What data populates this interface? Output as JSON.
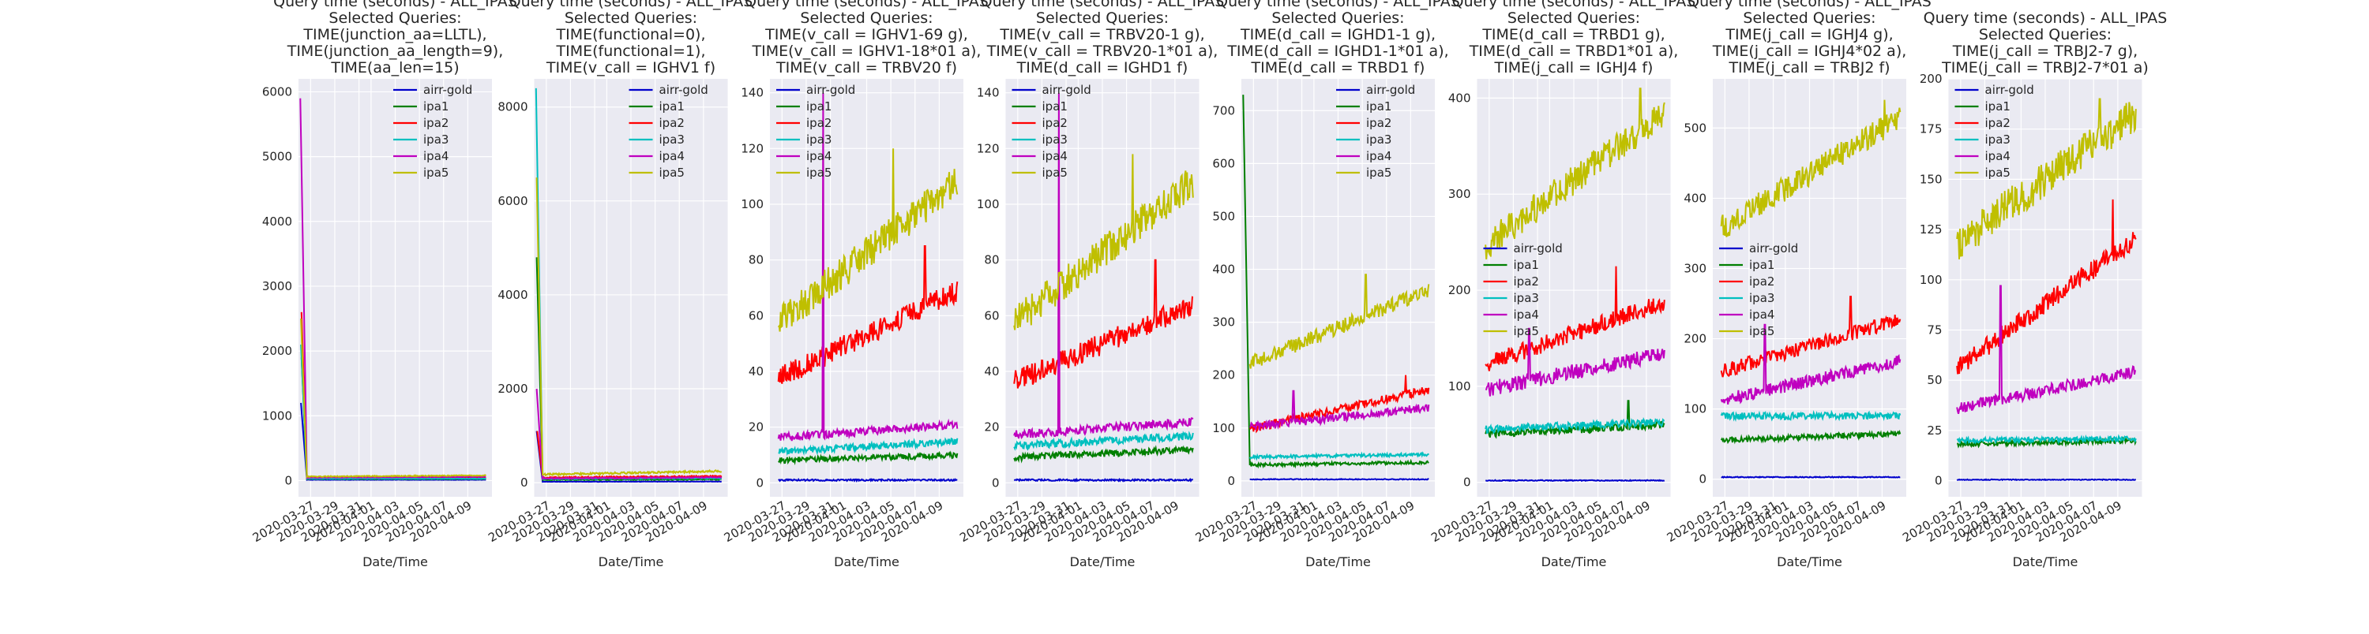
{
  "chart_data": [
    {
      "type": "line",
      "title": [
        "Query time (seconds) - ALL_IPAS",
        "Selected Queries:",
        "TIME(junction_aa=LLTL),",
        "TIME(junction_aa_length=9),",
        "TIME(aa_len=15)"
      ],
      "xlabel": "Date/Time",
      "ylabel": "",
      "x_range": [
        "2020-03-26",
        "2020-04-11"
      ],
      "x_ticks": [
        "2020-03-27",
        "2020-03-29",
        "2020-03-31",
        "2020-04-01",
        "2020-04-03",
        "2020-04-05",
        "2020-04-07",
        "2020-04-09"
      ],
      "ylim": [
        -250,
        6200
      ],
      "y_ticks": [
        0,
        1000,
        2000,
        3000,
        4000,
        5000,
        6000
      ],
      "legend_position": "upper-right",
      "series": [
        {
          "name": "airr-gold",
          "color": "#0000cc",
          "baseline": 12,
          "trend": 0,
          "noise": 2,
          "spike_day": 0.2,
          "spike_value": 1200
        },
        {
          "name": "ipa1",
          "color": "#007f00",
          "baseline": 25,
          "trend": 0,
          "noise": 4,
          "spike_day": 0.25,
          "spike_value": 1900
        },
        {
          "name": "ipa2",
          "color": "#ff0000",
          "baseline": 35,
          "trend": 10,
          "noise": 5,
          "spike_day": 0.25,
          "spike_value": 2600
        },
        {
          "name": "ipa3",
          "color": "#00bfbf",
          "baseline": 30,
          "trend": 0,
          "noise": 4,
          "spike_day": 0.2,
          "spike_value": 2100
        },
        {
          "name": "ipa4",
          "color": "#bf00bf",
          "baseline": 45,
          "trend": 15,
          "noise": 6,
          "spike_day": 0.15,
          "spike_value": 5900
        },
        {
          "name": "ipa5",
          "color": "#bfbf00",
          "baseline": 60,
          "trend": 20,
          "noise": 8,
          "spike_day": 0.2,
          "spike_value": 2500
        }
      ]
    },
    {
      "type": "line",
      "title": [
        "Query time (seconds) - ALL_IPAS",
        "Selected Queries:",
        "TIME(functional=0),",
        "TIME(functional=1),",
        "TIME(v_call = IGHV1 f)"
      ],
      "xlabel": "Date/Time",
      "ylabel": "",
      "x_range": [
        "2020-03-26",
        "2020-04-11"
      ],
      "x_ticks": [
        "2020-03-27",
        "2020-03-29",
        "2020-03-31",
        "2020-04-01",
        "2020-04-03",
        "2020-04-05",
        "2020-04-07",
        "2020-04-09"
      ],
      "ylim": [
        -300,
        8600
      ],
      "y_ticks": [
        0,
        2000,
        4000,
        6000,
        8000
      ],
      "legend_position": "upper-right",
      "series": [
        {
          "name": "airr-gold",
          "color": "#0000cc",
          "baseline": 20,
          "trend": 5,
          "noise": 4,
          "spike_day": 0.2,
          "spike_value": 1100
        },
        {
          "name": "ipa1",
          "color": "#007f00",
          "baseline": 60,
          "trend": 10,
          "noise": 10,
          "spike_day": 0.2,
          "spike_value": 4800
        },
        {
          "name": "ipa2",
          "color": "#ff0000",
          "baseline": 110,
          "trend": 30,
          "noise": 14,
          "spike_day": 0.25,
          "spike_value": 1100
        },
        {
          "name": "ipa3",
          "color": "#00bfbf",
          "baseline": 80,
          "trend": 20,
          "noise": 12,
          "spike_day": 0.15,
          "spike_value": 8400
        },
        {
          "name": "ipa4",
          "color": "#bf00bf",
          "baseline": 90,
          "trend": 25,
          "noise": 12,
          "spike_day": 0.2,
          "spike_value": 2000
        },
        {
          "name": "ipa5",
          "color": "#bfbf00",
          "baseline": 170,
          "trend": 80,
          "noise": 20,
          "spike_day": 0.2,
          "spike_value": 6500
        }
      ]
    },
    {
      "type": "line",
      "title": [
        "Query time (seconds) - ALL_IPAS",
        "Selected Queries:",
        "TIME(v_call = IGHV1-69 g),",
        "TIME(v_call = IGHV1-18*01 a),",
        "TIME(v_call = TRBV20 f)"
      ],
      "xlabel": "Date/Time",
      "ylabel": "",
      "x_range": [
        "2020-03-26",
        "2020-04-11"
      ],
      "x_ticks": [
        "2020-03-27",
        "2020-03-29",
        "2020-03-31",
        "2020-04-01",
        "2020-04-03",
        "2020-04-05",
        "2020-04-07",
        "2020-04-09"
      ],
      "ylim": [
        -5,
        145
      ],
      "y_ticks": [
        0,
        20,
        40,
        60,
        80,
        100,
        120,
        140
      ],
      "legend_position": "upper-left",
      "series": [
        {
          "name": "airr-gold",
          "color": "#0000cc",
          "baseline": 1,
          "trend": 0,
          "noise": 0.3
        },
        {
          "name": "ipa1",
          "color": "#007f00",
          "baseline": 8,
          "trend": 2,
          "noise": 1
        },
        {
          "name": "ipa2",
          "color": "#ff0000",
          "baseline": 36,
          "trend": 34,
          "noise": 4,
          "spike_day": 12.8,
          "spike_value": 85
        },
        {
          "name": "ipa3",
          "color": "#00bfbf",
          "baseline": 11,
          "trend": 4,
          "noise": 1.2
        },
        {
          "name": "ipa4",
          "color": "#bf00bf",
          "baseline": 16,
          "trend": 5,
          "noise": 1.5,
          "spike_day": 4.4,
          "spike_value": 140
        },
        {
          "name": "ipa5",
          "color": "#bfbf00",
          "baseline": 55,
          "trend": 55,
          "noise": 6,
          "spike_day": 10.2,
          "spike_value": 120
        }
      ]
    },
    {
      "type": "line",
      "title": [
        "Query time (seconds) - ALL_IPAS",
        "Selected Queries:",
        "TIME(v_call = TRBV20-1 g),",
        "TIME(v_call = TRBV20-1*01  a),",
        "TIME(d_call = IGHD1 f)"
      ],
      "xlabel": "Date/Time",
      "ylabel": "",
      "x_range": [
        "2020-03-26",
        "2020-04-11"
      ],
      "x_ticks": [
        "2020-03-27",
        "2020-03-29",
        "2020-03-31",
        "2020-04-01",
        "2020-04-03",
        "2020-04-05",
        "2020-04-07",
        "2020-04-09"
      ],
      "ylim": [
        -5,
        145
      ],
      "y_ticks": [
        0,
        20,
        40,
        60,
        80,
        100,
        120,
        140
      ],
      "legend_position": "upper-left",
      "series": [
        {
          "name": "airr-gold",
          "color": "#0000cc",
          "baseline": 1,
          "trend": 0,
          "noise": 0.3
        },
        {
          "name": "ipa1",
          "color": "#007f00",
          "baseline": 9,
          "trend": 3,
          "noise": 1.2
        },
        {
          "name": "ipa2",
          "color": "#ff0000",
          "baseline": 35,
          "trend": 30,
          "noise": 4,
          "spike_day": 12.4,
          "spike_value": 80
        },
        {
          "name": "ipa3",
          "color": "#00bfbf",
          "baseline": 13,
          "trend": 4,
          "noise": 1.4
        },
        {
          "name": "ipa4",
          "color": "#bf00bf",
          "baseline": 17,
          "trend": 5,
          "noise": 1.6,
          "spike_day": 4.4,
          "spike_value": 140
        },
        {
          "name": "ipa5",
          "color": "#bfbf00",
          "baseline": 55,
          "trend": 55,
          "noise": 6,
          "spike_day": 10.5,
          "spike_value": 118
        }
      ]
    },
    {
      "type": "line",
      "title": [
        "Query time (seconds) - ALL_IPAS",
        "Selected Queries:",
        "TIME(d_call = IGHD1-1 g),",
        "TIME(d_call = IGHD1-1*01 a),",
        "TIME(d_call = TRBD1 f)"
      ],
      "xlabel": "Date/Time",
      "ylabel": "",
      "x_range": [
        "2020-03-26",
        "2020-04-11"
      ],
      "x_ticks": [
        "2020-03-27",
        "2020-03-29",
        "2020-03-31",
        "2020-04-01",
        "2020-04-03",
        "2020-04-05",
        "2020-04-07",
        "2020-04-09"
      ],
      "ylim": [
        -30,
        760
      ],
      "y_ticks": [
        0,
        100,
        200,
        300,
        400,
        500,
        600,
        700
      ],
      "legend_position": "upper-right",
      "series": [
        {
          "name": "airr-gold",
          "color": "#0000cc",
          "baseline": 3,
          "trend": 0,
          "noise": 0.8
        },
        {
          "name": "ipa1",
          "color": "#007f00",
          "baseline": 30,
          "trend": 5,
          "noise": 3,
          "spike_day": 0.15,
          "spike_value": 730
        },
        {
          "name": "ipa2",
          "color": "#ff0000",
          "baseline": 95,
          "trend": 80,
          "noise": 8,
          "spike_day": 13.6,
          "spike_value": 200
        },
        {
          "name": "ipa3",
          "color": "#00bfbf",
          "baseline": 45,
          "trend": 5,
          "noise": 3
        },
        {
          "name": "ipa4",
          "color": "#bf00bf",
          "baseline": 100,
          "trend": 40,
          "noise": 8,
          "spike_day": 4.3,
          "spike_value": 170
        },
        {
          "name": "ipa5",
          "color": "#bfbf00",
          "baseline": 215,
          "trend": 150,
          "noise": 14,
          "spike_day": 10.3,
          "spike_value": 390
        }
      ]
    },
    {
      "type": "line",
      "title": [
        "Query time (seconds) - ALL_IPAS",
        "Selected Queries:",
        "TIME(d_call = TRBD1 g),",
        "TIME(d_call = TRBD1*01 a),",
        "TIME(j_call = IGHJ4 f)"
      ],
      "xlabel": "Date/Time",
      "ylabel": "",
      "x_range": [
        "2020-03-26",
        "2020-04-11"
      ],
      "x_ticks": [
        "2020-03-27",
        "2020-03-29",
        "2020-03-31",
        "2020-04-01",
        "2020-04-03",
        "2020-04-05",
        "2020-04-07",
        "2020-04-09"
      ],
      "ylim": [
        -15,
        420
      ],
      "y_ticks": [
        0,
        100,
        200,
        300,
        400
      ],
      "legend_position": "center-left",
      "series": [
        {
          "name": "airr-gold",
          "color": "#0000cc",
          "baseline": 2,
          "trend": 0,
          "noise": 0.5
        },
        {
          "name": "ipa1",
          "color": "#007f00",
          "baseline": 50,
          "trend": 10,
          "noise": 4,
          "spike_day": 12.5,
          "spike_value": 85
        },
        {
          "name": "ipa2",
          "color": "#ff0000",
          "baseline": 120,
          "trend": 70,
          "noise": 9,
          "spike_day": 11.5,
          "spike_value": 225
        },
        {
          "name": "ipa3",
          "color": "#00bfbf",
          "baseline": 55,
          "trend": 8,
          "noise": 4
        },
        {
          "name": "ipa4",
          "color": "#bf00bf",
          "baseline": 95,
          "trend": 40,
          "noise": 8,
          "spike_day": 4.3,
          "spike_value": 160
        },
        {
          "name": "ipa5",
          "color": "#bfbf00",
          "baseline": 240,
          "trend": 150,
          "noise": 16,
          "spike_day": 13.5,
          "spike_value": 410
        }
      ]
    },
    {
      "type": "line",
      "title": [
        "Query time (seconds) - ALL_IPAS",
        "Selected Queries:",
        "TIME(j_call = IGHJ4 g),",
        "TIME(j_call = IGHJ4*02 a),",
        "TIME(j_call = TRBJ2 f)"
      ],
      "xlabel": "Date/Time",
      "ylabel": "",
      "x_range": [
        "2020-03-26",
        "2020-04-11"
      ],
      "x_ticks": [
        "2020-03-27",
        "2020-03-29",
        "2020-03-31",
        "2020-04-01",
        "2020-04-03",
        "2020-04-05",
        "2020-04-07",
        "2020-04-09"
      ],
      "ylim": [
        -25,
        570
      ],
      "y_ticks": [
        0,
        100,
        200,
        300,
        400,
        500
      ],
      "legend_position": "center-left",
      "series": [
        {
          "name": "airr-gold",
          "color": "#0000cc",
          "baseline": 3,
          "trend": 0,
          "noise": 0.6
        },
        {
          "name": "ipa1",
          "color": "#007f00",
          "baseline": 55,
          "trend": 10,
          "noise": 4
        },
        {
          "name": "ipa2",
          "color": "#ff0000",
          "baseline": 150,
          "trend": 80,
          "noise": 10,
          "spike_day": 11.4,
          "spike_value": 260
        },
        {
          "name": "ipa3",
          "color": "#00bfbf",
          "baseline": 90,
          "trend": 0,
          "noise": 5
        },
        {
          "name": "ipa4",
          "color": "#bf00bf",
          "baseline": 110,
          "trend": 60,
          "noise": 9,
          "spike_day": 4.3,
          "spike_value": 220
        },
        {
          "name": "ipa5",
          "color": "#bfbf00",
          "baseline": 350,
          "trend": 170,
          "noise": 18,
          "spike_day": 14.2,
          "spike_value": 540
        }
      ]
    },
    {
      "type": "line",
      "title": [
        "Query time (seconds) - ALL_IPAS",
        "Selected Queries:",
        "TIME(j_call = TRBJ2-7 g),",
        "TIME(j_call = TRBJ2-7*01 a)"
      ],
      "xlabel": "Date/Time",
      "ylabel": "",
      "x_range": [
        "2020-03-26",
        "2020-04-11"
      ],
      "x_ticks": [
        "2020-03-27",
        "2020-03-29",
        "2020-03-31",
        "2020-04-01",
        "2020-04-03",
        "2020-04-05",
        "2020-04-07",
        "2020-04-09"
      ],
      "ylim": [
        -8,
        200
      ],
      "y_ticks": [
        0,
        25,
        50,
        75,
        100,
        125,
        150,
        175,
        200
      ],
      "legend_position": "upper-left",
      "series": [
        {
          "name": "airr-gold",
          "color": "#0000cc",
          "baseline": 0.5,
          "trend": 0,
          "noise": 0.2
        },
        {
          "name": "ipa1",
          "color": "#007f00",
          "baseline": 18,
          "trend": 2,
          "noise": 1.2
        },
        {
          "name": "ipa2",
          "color": "#ff0000",
          "baseline": 53,
          "trend": 70,
          "noise": 5,
          "spike_day": 13.6,
          "spike_value": 140
        },
        {
          "name": "ipa3",
          "color": "#00bfbf",
          "baseline": 20,
          "trend": 1,
          "noise": 1.2
        },
        {
          "name": "ipa4",
          "color": "#bf00bf",
          "baseline": 35,
          "trend": 20,
          "noise": 3,
          "spike_day": 4.3,
          "spike_value": 97
        },
        {
          "name": "ipa5",
          "color": "#bfbf00",
          "baseline": 115,
          "trend": 70,
          "noise": 9,
          "spike_day": 12.5,
          "spike_value": 190
        }
      ]
    }
  ]
}
